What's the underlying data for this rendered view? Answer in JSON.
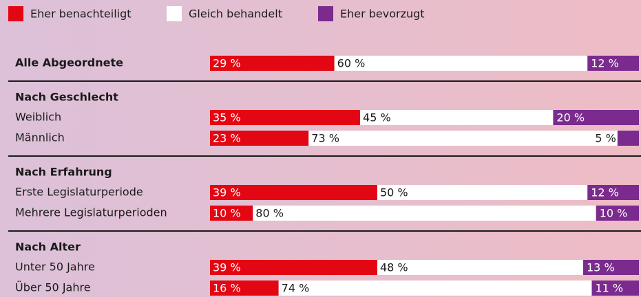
{
  "chart_data": {
    "type": "bar",
    "orientation": "horizontal",
    "stacked": true,
    "xlim": [
      0,
      100
    ],
    "series": [
      {
        "name": "Eher benachteiligt",
        "color": "#e30613"
      },
      {
        "name": "Gleich behandelt",
        "color": "#ffffff"
      },
      {
        "name": "Eher bevorzugt",
        "color": "#7b2b8e"
      }
    ],
    "sections": [
      {
        "title": "Alle Abgeordnete",
        "values": [
          29,
          60,
          12
        ],
        "value_labels": [
          "29 %",
          "60 %",
          "12 %"
        ]
      },
      {
        "title": "Nach Geschlecht",
        "rows": [
          {
            "label": "Weiblich",
            "values": [
              35,
              45,
              20
            ],
            "value_labels": [
              "35 %",
              "45 %",
              "20 %"
            ]
          },
          {
            "label": "Männlich",
            "values": [
              23,
              73,
              5
            ],
            "value_labels": [
              "23 %",
              "73 %",
              "5 %"
            ]
          }
        ]
      },
      {
        "title": "Nach Erfahrung",
        "rows": [
          {
            "label": "Erste Legislaturperiode",
            "values": [
              39,
              50,
              12
            ],
            "value_labels": [
              "39 %",
              "50 %",
              "12 %"
            ]
          },
          {
            "label": "Mehrere Legislaturperioden",
            "values": [
              10,
              80,
              10
            ],
            "value_labels": [
              "10 %",
              "80 %",
              "10 %"
            ]
          }
        ]
      },
      {
        "title": "Nach Alter",
        "rows": [
          {
            "label": "Unter 50 Jahre",
            "values": [
              39,
              48,
              13
            ],
            "value_labels": [
              "39 %",
              "48 %",
              "13 %"
            ]
          },
          {
            "label": "Über 50 Jahre",
            "values": [
              16,
              74,
              11
            ],
            "value_labels": [
              "16 %",
              "74 %",
              "11 %"
            ]
          }
        ]
      }
    ]
  }
}
